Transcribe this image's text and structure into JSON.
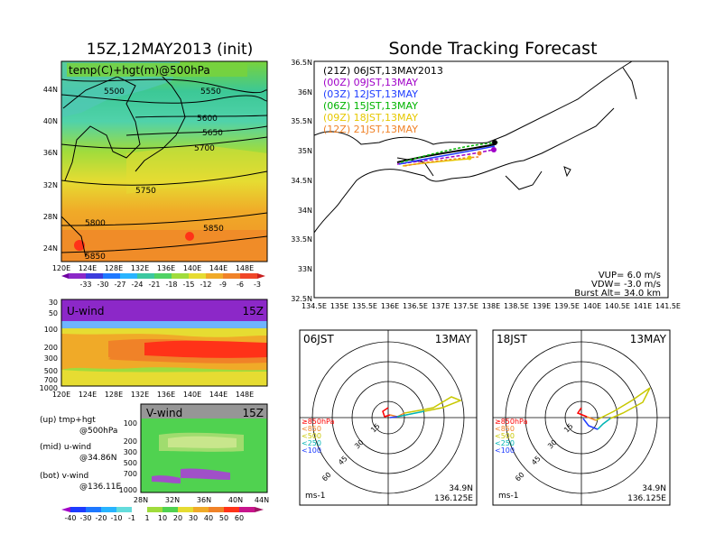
{
  "titles": {
    "left": "15Z,12MAY2013 (init)",
    "right": "Sonde Tracking Forecast"
  },
  "top_map": {
    "label": "temp(C)+hgt(m)@500hPa",
    "lat_ticks": [
      "44N",
      "40N",
      "36N",
      "32N",
      "28N",
      "24N"
    ],
    "lon_ticks": [
      "120E",
      "124E",
      "128E",
      "132E",
      "136E",
      "140E",
      "144E",
      "148E"
    ],
    "contours": [
      "5500",
      "5550",
      "5600",
      "5650",
      "5700",
      "5750",
      "5800",
      "5850",
      "5850"
    ],
    "colorbar": [
      "-33",
      "-30",
      "-27",
      "-24",
      "-21",
      "-18",
      "-15",
      "-12",
      "-9",
      "-6",
      "-3"
    ]
  },
  "uwind": {
    "label": "U-wind",
    "time": "15Z",
    "p_ticks": [
      "30",
      "50",
      "100",
      "200",
      "300",
      "500",
      "700",
      "1000"
    ],
    "lon_ticks": [
      "120E",
      "124E",
      "128E",
      "132E",
      "136E",
      "140E",
      "144E",
      "148E"
    ]
  },
  "vwind": {
    "label": "V-wind",
    "time": "15Z",
    "p_ticks": [
      "100",
      "200",
      "300",
      "500",
      "700",
      "1000"
    ],
    "lat_ticks": [
      "28N",
      "32N",
      "36N",
      "40N",
      "44N"
    ],
    "colorbar": [
      "-40",
      "-30",
      "-20",
      "-10",
      "-1",
      "1",
      "10",
      "20",
      "30",
      "40",
      "50",
      "60"
    ]
  },
  "legend_text": [
    "(up) tmp+hgt",
    "@500hPa",
    "(mid) u-wind",
    "@34.86N",
    "(bot) v-wind",
    "@136.11E"
  ],
  "track_map": {
    "lat_ticks": [
      "36.5N",
      "36N",
      "35.5N",
      "35N",
      "34.5N",
      "34N",
      "33.5N",
      "33N",
      "32.5N"
    ],
    "lon_ticks": [
      "134.5E",
      "135E",
      "135.5E",
      "136E",
      "136.5E",
      "137E",
      "137.5E",
      "138E",
      "138.5E",
      "139E",
      "139.5E",
      "140E",
      "140.5E",
      "141E",
      "141.5E"
    ],
    "legend": [
      {
        "label": "(21Z)  06JST,13MAY2013",
        "color": "#000000"
      },
      {
        "label": "(00Z)  09JST,13MAY",
        "color": "#a000c8"
      },
      {
        "label": "(03Z)  12JST,13MAY",
        "color": "#1e3cff"
      },
      {
        "label": "(06Z)  15JST,13MAY",
        "color": "#00b400"
      },
      {
        "label": "(09Z)  18JST,13MAY",
        "color": "#e6c800"
      },
      {
        "label": "(12Z)  21JST,13MAY",
        "color": "#f08228"
      }
    ],
    "params": [
      "VUP=  6.0  m/s",
      "VDW=  -3.0  m/s",
      "Burst Alt=  34.0  km"
    ]
  },
  "hodo1": {
    "time": "06JST",
    "date": "13MAY",
    "rings": [
      "15",
      "30",
      "45",
      "60"
    ],
    "levels": [
      "≥850hPa",
      "<850",
      "<500",
      "<250",
      "<100"
    ],
    "unit": "ms-1",
    "loc1": "34.9N",
    "loc2": "136.125E"
  },
  "hodo2": {
    "time": "18JST",
    "date": "13MAY",
    "rings": [
      "15",
      "30",
      "45",
      "60"
    ],
    "levels": [
      "≥850hPa",
      "<850",
      "<500",
      "<250",
      "<100"
    ],
    "unit": "ms-1",
    "loc1": "34.9N",
    "loc2": "136.125E"
  },
  "colors": {
    "level_red": "#ff0000",
    "level_orange": "#f08228",
    "level_yellow": "#c8c800",
    "level_green": "#00b4b4",
    "level_blue": "#1e3cff"
  }
}
